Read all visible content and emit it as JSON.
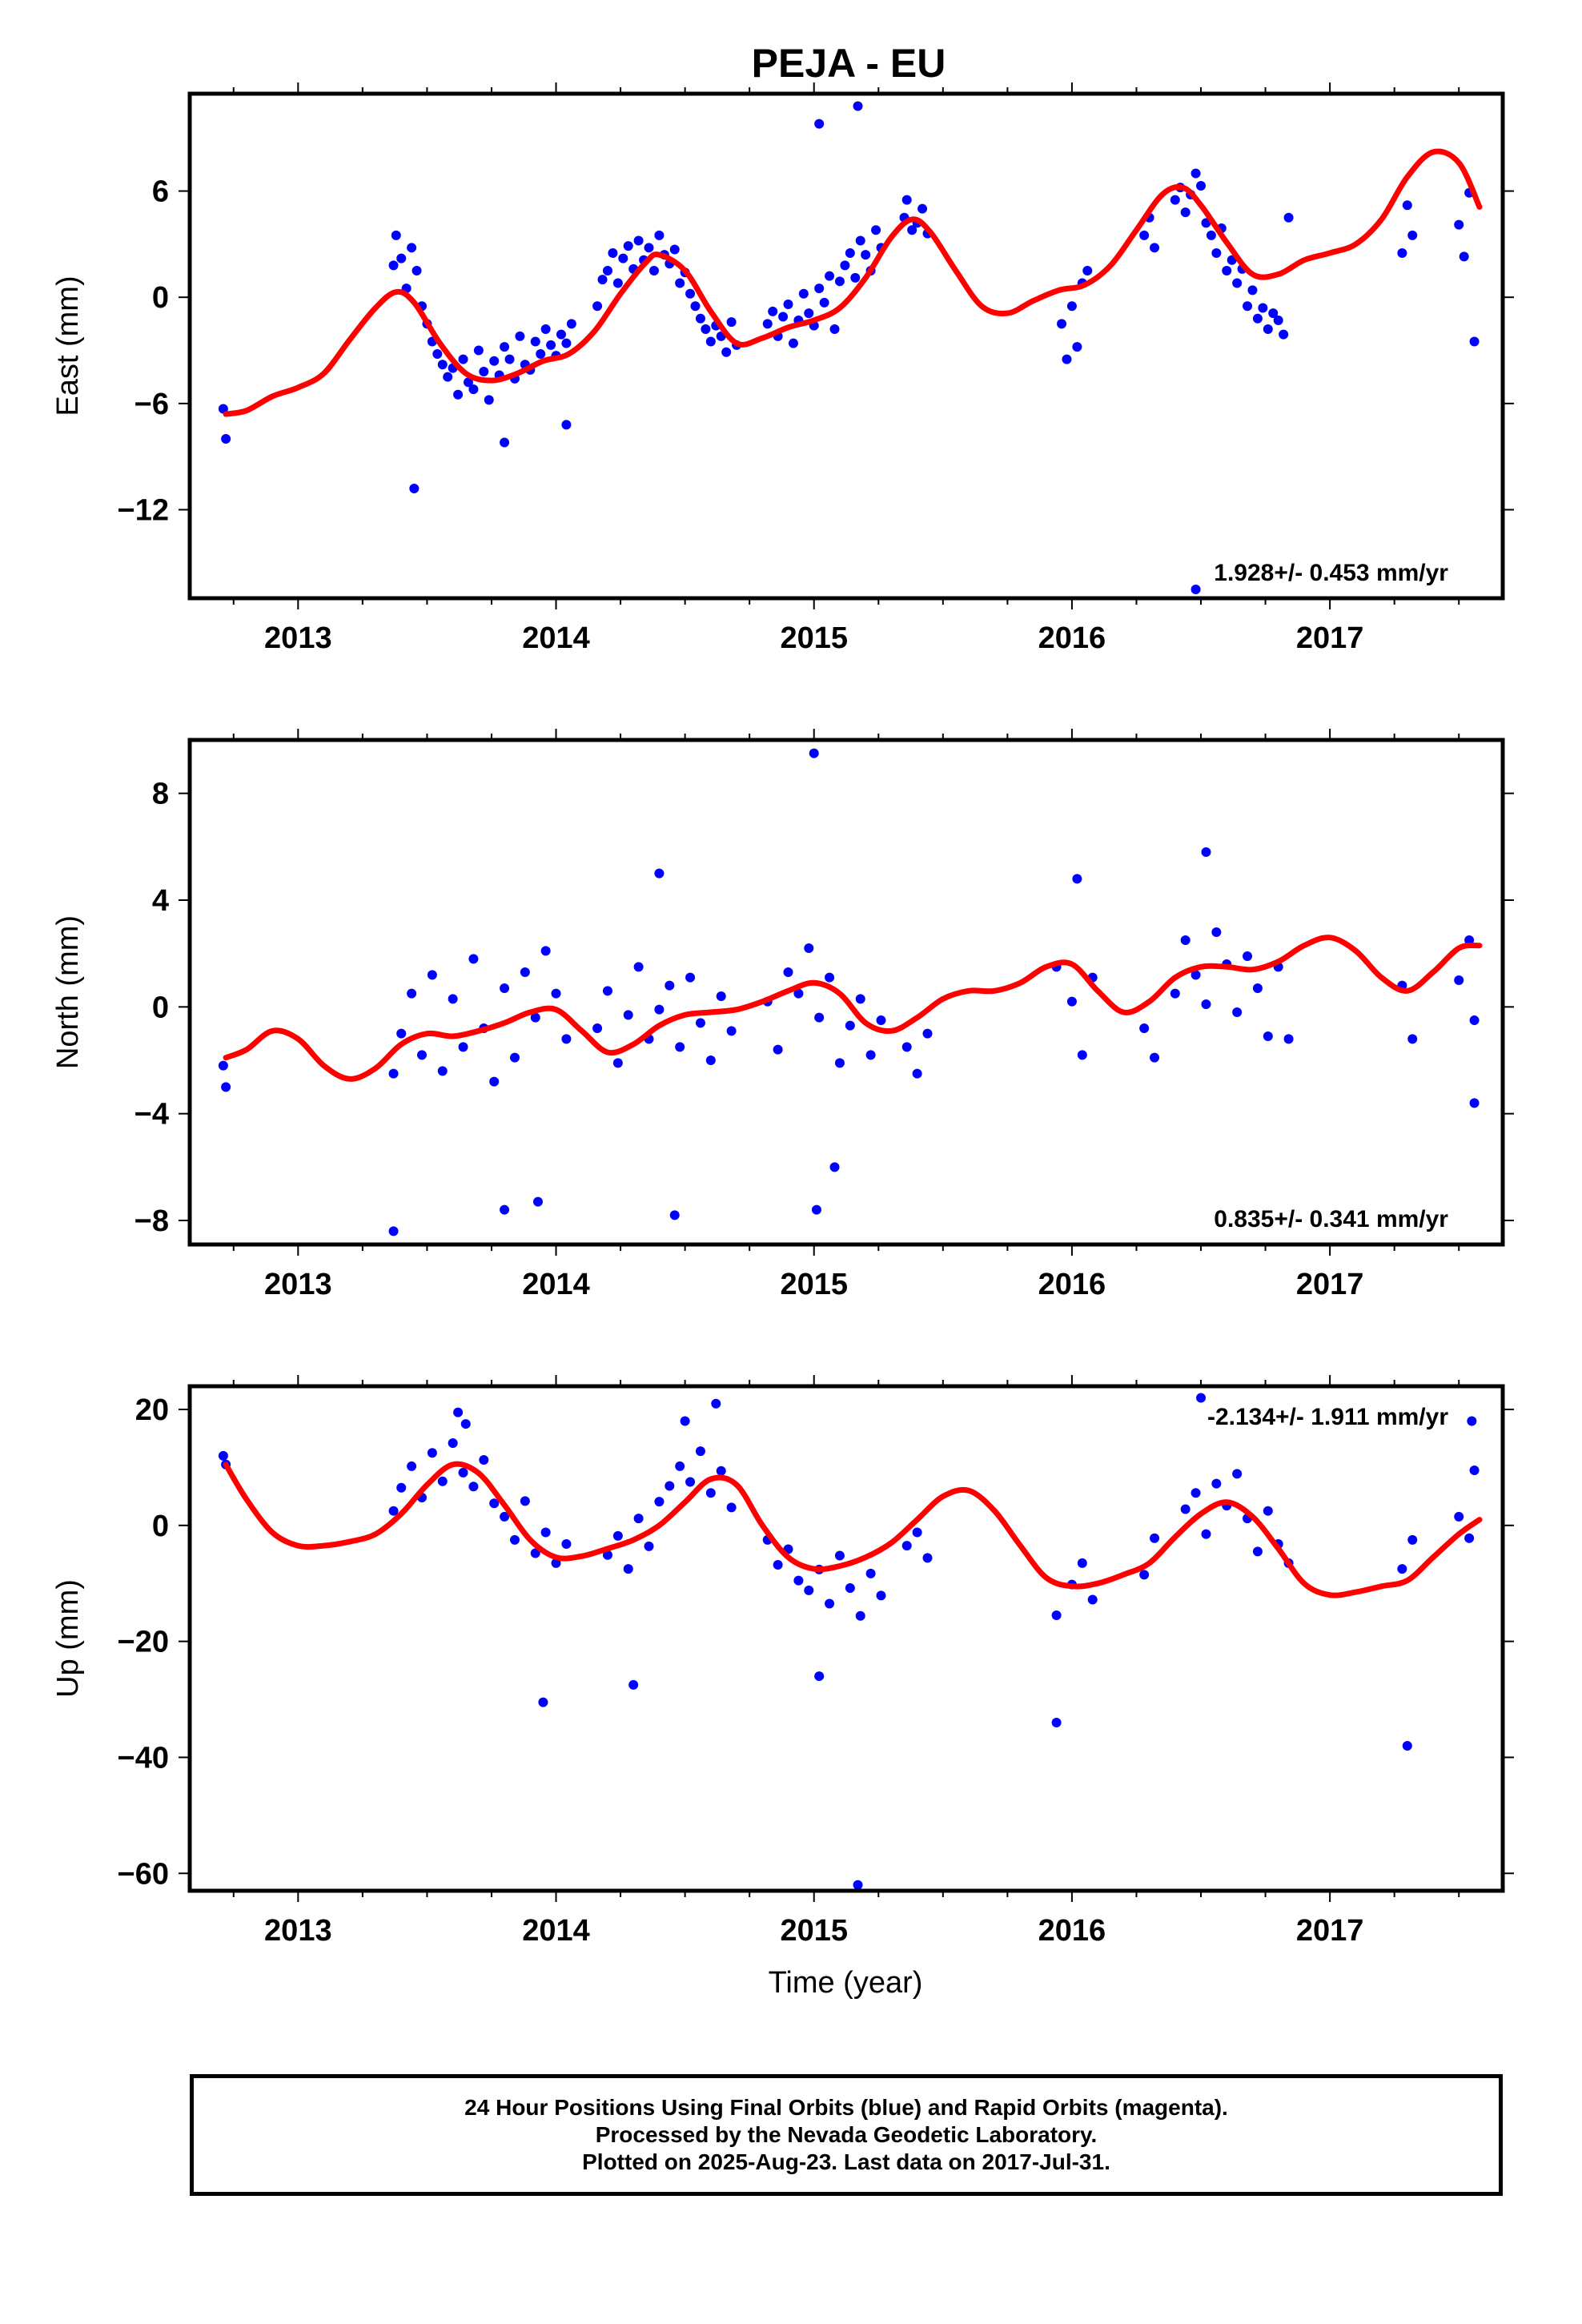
{
  "title": "PEJA - EU",
  "xlabel": "Time (year)",
  "footer": {
    "line1": "24 Hour Positions Using Final Orbits (blue) and Rapid Orbits (magenta).",
    "line2": "Processed by the Nevada Geodetic Laboratory.",
    "line3": "Plotted on 2025-Aug-23. Last data on 2017-Jul-31."
  },
  "colors": {
    "points": "#0000ff",
    "fit": "#ff0000",
    "frame": "#000000"
  },
  "chart_data": [
    {
      "type": "scatter",
      "ylabel": "East (mm)",
      "rate_label": "1.928+/- 0.453 mm/yr",
      "xlim": [
        2012.58,
        2017.67
      ],
      "ylim": [
        -17,
        11.5
      ],
      "xticks": [
        2013,
        2014,
        2015,
        2016,
        2017
      ],
      "yticks": [
        -12,
        -6,
        0,
        6
      ],
      "points_x": [
        2012.71,
        2012.72,
        2013.37,
        2013.38,
        2013.4,
        2013.42,
        2013.44,
        2013.46,
        2013.48,
        2013.5,
        2013.52,
        2013.54,
        2013.56,
        2013.58,
        2013.6,
        2013.62,
        2013.64,
        2013.66,
        2013.68,
        2013.7,
        2013.72,
        2013.74,
        2013.76,
        2013.78,
        2013.8,
        2013.82,
        2013.84,
        2013.86,
        2013.88,
        2013.9,
        2013.92,
        2013.94,
        2013.96,
        2013.98,
        2014.0,
        2014.02,
        2014.04,
        2014.06,
        2014.16,
        2014.18,
        2014.2,
        2014.22,
        2014.24,
        2014.26,
        2014.28,
        2014.3,
        2014.32,
        2014.34,
        2014.36,
        2014.38,
        2014.4,
        2014.42,
        2014.44,
        2014.46,
        2014.48,
        2014.5,
        2014.52,
        2014.54,
        2014.56,
        2014.58,
        2014.6,
        2014.62,
        2014.64,
        2014.66,
        2014.68,
        2014.7,
        2014.82,
        2014.84,
        2014.86,
        2014.88,
        2014.9,
        2014.92,
        2014.94,
        2014.96,
        2014.98,
        2015.0,
        2015.02,
        2015.04,
        2015.06,
        2015.08,
        2015.1,
        2015.12,
        2015.14,
        2015.16,
        2015.18,
        2015.2,
        2015.22,
        2015.24,
        2015.26,
        2015.35,
        2015.36,
        2015.38,
        2015.4,
        2015.42,
        2015.44,
        2015.96,
        2015.98,
        2016.0,
        2016.02,
        2016.04,
        2016.06,
        2016.28,
        2016.3,
        2016.32,
        2016.4,
        2016.42,
        2016.44,
        2016.46,
        2016.48,
        2016.5,
        2016.52,
        2016.54,
        2016.56,
        2016.58,
        2016.6,
        2016.62,
        2016.64,
        2016.66,
        2016.68,
        2016.7,
        2016.72,
        2016.74,
        2016.76,
        2016.78,
        2016.8,
        2016.82,
        2016.84,
        2017.28,
        2017.3,
        2017.32,
        2017.5,
        2017.52,
        2017.54,
        2017.56,
        2013.45,
        2013.8,
        2014.04,
        2015.02,
        2015.17,
        2016.48,
        2015.0
      ],
      "points_y": [
        -6.3,
        -8,
        1.8,
        3.5,
        2.2,
        0.5,
        2.8,
        1.5,
        -0.5,
        -1.5,
        -2.5,
        -3.2,
        -3.8,
        -4.5,
        -4,
        -5.5,
        -3.5,
        -4.8,
        -5.2,
        -3,
        -4.2,
        -5.8,
        -3.6,
        -4.4,
        -2.8,
        -3.5,
        -4.6,
        -2.2,
        -3.8,
        -4.1,
        -2.5,
        -3.2,
        -1.8,
        -2.7,
        -3.3,
        -2.1,
        -2.6,
        -1.5,
        -0.5,
        1,
        1.5,
        2.5,
        0.8,
        2.2,
        2.9,
        1.6,
        3.2,
        2.1,
        2.8,
        1.5,
        3.5,
        2.4,
        1.9,
        2.7,
        0.8,
        1.4,
        0.2,
        -0.5,
        -1.2,
        -1.8,
        -2.5,
        -1.6,
        -2.2,
        -3.1,
        -1.4,
        -2.7,
        -1.5,
        -0.8,
        -2.2,
        -1.1,
        -0.4,
        -2.6,
        -1.3,
        0.2,
        -0.9,
        -1.6,
        0.5,
        -0.3,
        1.2,
        -1.8,
        0.9,
        1.8,
        2.5,
        1.1,
        3.2,
        2.4,
        1.5,
        3.8,
        2.8,
        4.5,
        5.5,
        3.8,
        4.2,
        5,
        3.6,
        -1.5,
        -3.5,
        -0.5,
        -2.8,
        0.8,
        1.5,
        3.5,
        4.5,
        2.8,
        5.5,
        6.2,
        4.8,
        5.8,
        7,
        6.3,
        4.2,
        3.5,
        2.5,
        3.9,
        1.5,
        2.1,
        0.8,
        1.6,
        -0.5,
        0.4,
        -1.2,
        -0.6,
        -1.8,
        -0.9,
        -1.3,
        -2.1,
        4.5,
        2.5,
        5.2,
        3.5,
        4.1,
        2.3,
        5.9,
        -2.5,
        -10.8,
        -8.2,
        -7.2,
        9.8,
        10.8,
        -16.5
      ],
      "fit_x": [
        2012.72,
        2012.8,
        2012.9,
        2013.0,
        2013.1,
        2013.2,
        2013.3,
        2013.38,
        2013.45,
        2013.55,
        2013.65,
        2013.75,
        2013.85,
        2013.95,
        2014.05,
        2014.15,
        2014.25,
        2014.35,
        2014.4,
        2014.5,
        2014.6,
        2014.7,
        2014.8,
        2014.9,
        2015.0,
        2015.1,
        2015.2,
        2015.3,
        2015.38,
        2015.45,
        2015.55,
        2015.65,
        2015.75,
        2015.85,
        2015.95,
        2016.05,
        2016.15,
        2016.25,
        2016.35,
        2016.43,
        2016.5,
        2016.6,
        2016.7,
        2016.8,
        2016.9,
        2017.0,
        2017.1,
        2017.2,
        2017.3,
        2017.4,
        2017.5,
        2017.58
      ],
      "fit_y": [
        -6.6,
        -6.4,
        -5.6,
        -5.1,
        -4.3,
        -2.4,
        -0.6,
        0.3,
        -0.3,
        -2.6,
        -4.3,
        -4.7,
        -4.3,
        -3.6,
        -3.2,
        -1.9,
        0.2,
        2,
        2.4,
        1.5,
        -0.8,
        -2.6,
        -2.3,
        -1.7,
        -1.3,
        -0.6,
        1.1,
        3.4,
        4.4,
        3.7,
        1.5,
        -0.5,
        -0.9,
        -0.2,
        0.4,
        0.7,
        1.8,
        3.8,
        5.8,
        6.2,
        5.2,
        3.1,
        1.3,
        1.3,
        2.1,
        2.5,
        3,
        4.4,
        6.8,
        8.2,
        7.6,
        5.1
      ]
    },
    {
      "type": "scatter",
      "ylabel": "North (mm)",
      "rate_label": "0.835+/- 0.341 mm/yr",
      "xlim": [
        2012.58,
        2017.67
      ],
      "ylim": [
        -8.9,
        10
      ],
      "xticks": [
        2013,
        2014,
        2015,
        2016,
        2017
      ],
      "yticks": [
        -8,
        -4,
        0,
        4,
        8
      ],
      "points_x": [
        2012.71,
        2012.72,
        2013.37,
        2013.4,
        2013.44,
        2013.48,
        2013.52,
        2013.56,
        2013.6,
        2013.64,
        2013.68,
        2013.72,
        2013.76,
        2013.8,
        2013.84,
        2013.88,
        2013.92,
        2013.96,
        2014.0,
        2014.04,
        2014.16,
        2014.2,
        2014.24,
        2014.28,
        2014.32,
        2014.36,
        2014.4,
        2014.44,
        2014.48,
        2014.52,
        2014.56,
        2014.6,
        2014.64,
        2014.68,
        2014.82,
        2014.86,
        2014.9,
        2014.94,
        2014.98,
        2015.02,
        2015.06,
        2015.1,
        2015.14,
        2015.18,
        2015.22,
        2015.26,
        2015.36,
        2015.4,
        2015.44,
        2015.94,
        2016.0,
        2016.04,
        2016.08,
        2016.28,
        2016.32,
        2016.4,
        2016.44,
        2016.48,
        2016.52,
        2016.56,
        2016.6,
        2016.64,
        2016.68,
        2016.72,
        2016.76,
        2016.8,
        2016.84,
        2017.28,
        2017.32,
        2017.5,
        2017.54,
        2017.56,
        2013.37,
        2013.8,
        2013.93,
        2014.46,
        2015.01,
        2015.08,
        2016.02,
        2016.52,
        2014.4,
        2015.0,
        2017.56
      ],
      "points_y": [
        -2.2,
        -3,
        -2.5,
        -1,
        0.5,
        -1.8,
        1.2,
        -2.4,
        0.3,
        -1.5,
        1.8,
        -0.8,
        -2.8,
        0.7,
        -1.9,
        1.3,
        -0.4,
        2.1,
        0.5,
        -1.2,
        -0.8,
        0.6,
        -2.1,
        -0.3,
        1.5,
        -1.2,
        -0.1,
        0.8,
        -1.5,
        1.1,
        -0.6,
        -2,
        0.4,
        -0.9,
        0.2,
        -1.6,
        1.3,
        0.5,
        2.2,
        -0.4,
        1.1,
        -2.1,
        -0.7,
        0.3,
        -1.8,
        -0.5,
        -1.5,
        -2.5,
        -1,
        1.5,
        0.2,
        -1.8,
        1.1,
        -0.8,
        -1.9,
        0.5,
        2.5,
        1.2,
        0.1,
        2.8,
        1.6,
        -0.2,
        1.9,
        0.7,
        -1.1,
        1.5,
        -1.2,
        0.8,
        -1.2,
        1,
        2.5,
        -0.5,
        -8.4,
        -7.6,
        -7.3,
        -7.8,
        -7.6,
        -6,
        4.8,
        5.8,
        5,
        9.5,
        -3.6
      ],
      "fit_x": [
        2012.72,
        2012.8,
        2012.9,
        2013.0,
        2013.1,
        2013.2,
        2013.3,
        2013.4,
        2013.5,
        2013.6,
        2013.7,
        2013.8,
        2013.9,
        2014.0,
        2014.1,
        2014.2,
        2014.3,
        2014.4,
        2014.5,
        2014.6,
        2014.7,
        2014.8,
        2014.9,
        2015.0,
        2015.1,
        2015.2,
        2015.3,
        2015.4,
        2015.5,
        2015.6,
        2015.7,
        2015.8,
        2015.9,
        2016.0,
        2016.1,
        2016.2,
        2016.3,
        2016.4,
        2016.5,
        2016.6,
        2016.7,
        2016.8,
        2016.9,
        2017.0,
        2017.1,
        2017.2,
        2017.3,
        2017.4,
        2017.5,
        2017.58
      ],
      "fit_y": [
        -1.9,
        -1.6,
        -0.9,
        -1.2,
        -2.2,
        -2.7,
        -2.3,
        -1.4,
        -1,
        -1.1,
        -0.9,
        -0.6,
        -0.2,
        -0.1,
        -0.9,
        -1.7,
        -1.4,
        -0.7,
        -0.3,
        -0.2,
        -0.1,
        0.2,
        0.6,
        0.9,
        0.5,
        -0.6,
        -0.9,
        -0.4,
        0.3,
        0.6,
        0.6,
        0.9,
        1.5,
        1.6,
        0.6,
        -0.2,
        0.2,
        1.1,
        1.5,
        1.5,
        1.4,
        1.7,
        2.3,
        2.6,
        2.1,
        1.1,
        0.6,
        1.3,
        2.2,
        2.3
      ]
    },
    {
      "type": "scatter",
      "ylabel": "Up (mm)",
      "rate_label": "-2.134+/- 1.911 mm/yr",
      "xlabel": "Time (year)",
      "xlim": [
        2012.58,
        2017.67
      ],
      "ylim": [
        -63,
        24
      ],
      "xticks": [
        2013,
        2014,
        2015,
        2016,
        2017
      ],
      "yticks": [
        -60,
        -40,
        -20,
        0,
        20
      ],
      "points_x": [
        2012.71,
        2012.72,
        2013.37,
        2013.4,
        2013.44,
        2013.48,
        2013.52,
        2013.56,
        2013.6,
        2013.64,
        2013.68,
        2013.72,
        2013.76,
        2013.8,
        2013.84,
        2013.88,
        2013.92,
        2013.96,
        2014.0,
        2014.04,
        2014.2,
        2014.24,
        2014.28,
        2014.32,
        2014.36,
        2014.4,
        2014.44,
        2014.48,
        2014.52,
        2014.56,
        2014.6,
        2014.64,
        2014.68,
        2014.82,
        2014.86,
        2014.9,
        2014.94,
        2014.98,
        2015.02,
        2015.06,
        2015.1,
        2015.14,
        2015.18,
        2015.22,
        2015.26,
        2015.36,
        2015.4,
        2015.44,
        2015.94,
        2016.0,
        2016.04,
        2016.08,
        2016.28,
        2016.32,
        2016.44,
        2016.48,
        2016.52,
        2016.56,
        2016.6,
        2016.64,
        2016.68,
        2016.72,
        2016.76,
        2016.8,
        2016.84,
        2017.28,
        2017.32,
        2017.5,
        2017.54,
        2017.56,
        2013.62,
        2013.65,
        2014.5,
        2014.62,
        2013.95,
        2014.3,
        2015.02,
        2015.94,
        2017.3,
        2015.17,
        2016.5,
        2017.55
      ],
      "points_y": [
        12,
        10.5,
        2.5,
        6.5,
        10.2,
        4.8,
        12.5,
        7.6,
        14.2,
        9.1,
        6.7,
        11.3,
        3.8,
        1.5,
        -2.5,
        4.2,
        -4.8,
        -1.2,
        -6.5,
        -3.2,
        -5.1,
        -1.8,
        -7.5,
        1.2,
        -3.6,
        4.1,
        6.8,
        10.2,
        7.5,
        12.8,
        5.6,
        9.4,
        3.1,
        -2.5,
        -6.8,
        -4.1,
        -9.5,
        -11.2,
        -7.6,
        -13.5,
        -5.2,
        -10.8,
        -15.6,
        -8.3,
        -12.1,
        -3.5,
        -1.2,
        -5.6,
        -15.5,
        -10.2,
        -6.5,
        -12.8,
        -8.5,
        -2.2,
        2.8,
        5.6,
        -1.5,
        7.2,
        3.4,
        8.9,
        1.2,
        -4.5,
        2.5,
        -3.2,
        -6.5,
        -7.5,
        -2.5,
        1.5,
        -2.2,
        9.5,
        19.5,
        17.5,
        18,
        21,
        -30.5,
        -27.5,
        -26,
        -34,
        -38,
        -62,
        22,
        18
      ],
      "fit_x": [
        2012.72,
        2012.8,
        2012.9,
        2013.0,
        2013.1,
        2013.2,
        2013.3,
        2013.4,
        2013.5,
        2013.6,
        2013.7,
        2013.8,
        2013.9,
        2014.0,
        2014.1,
        2014.2,
        2014.3,
        2014.4,
        2014.5,
        2014.6,
        2014.7,
        2014.8,
        2014.9,
        2015.0,
        2015.1,
        2015.2,
        2015.3,
        2015.4,
        2015.5,
        2015.6,
        2015.7,
        2015.8,
        2015.9,
        2016.0,
        2016.1,
        2016.2,
        2016.3,
        2016.4,
        2016.5,
        2016.6,
        2016.7,
        2016.8,
        2016.9,
        2017.0,
        2017.1,
        2017.2,
        2017.3,
        2017.4,
        2017.5,
        2017.58
      ],
      "fit_y": [
        10.5,
        4.5,
        -1.2,
        -3.5,
        -3.5,
        -2.8,
        -1.5,
        2,
        7,
        10.5,
        9,
        3.5,
        -2.5,
        -5.5,
        -5.3,
        -4,
        -2.5,
        0,
        4,
        8,
        7,
        0,
        -5.5,
        -7.5,
        -7,
        -5.5,
        -3,
        1,
        5,
        6,
        2.5,
        -3.5,
        -9,
        -10.5,
        -10,
        -8.5,
        -6.5,
        -2,
        2,
        4,
        1.5,
        -4,
        -10,
        -12,
        -11.5,
        -10.5,
        -9.5,
        -5.5,
        -1.5,
        1
      ]
    }
  ]
}
